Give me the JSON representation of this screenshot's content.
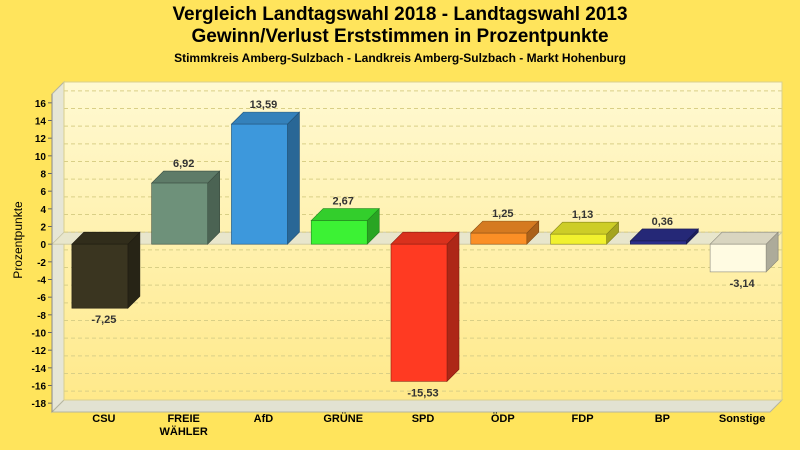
{
  "chart_data": {
    "type": "bar",
    "title": "Vergleich Landtagswahl 2018 - Landtagswahl 2013",
    "subtitle": "Gewinn/Verlust Erststimmen in Prozentpunkte",
    "subtitle2": "Stimmkreis Amberg-Sulzbach - Landkreis Amberg-Sulzbach - Markt Hohenburg",
    "ylabel": "Prozentpunkte",
    "xlabel": "",
    "ylim": [
      -19,
      17
    ],
    "yticks": [
      16,
      14,
      12,
      10,
      8,
      6,
      4,
      2,
      0,
      -2,
      -4,
      -6,
      -8,
      -10,
      -12,
      -14,
      -16,
      -18
    ],
    "grid": true,
    "categories": [
      "CSU",
      "FREIE\nWÄHLER",
      "AfD",
      "GRÜNE",
      "SPD",
      "ÖDP",
      "FDP",
      "BP",
      "Sonstige"
    ],
    "values": [
      -7.25,
      6.92,
      13.59,
      2.67,
      -15.53,
      1.25,
      1.13,
      0.36,
      -3.14
    ],
    "value_labels": [
      "-7,25",
      "6,92",
      "13,59",
      "2,67",
      "-15,53",
      "1,25",
      "1,13",
      "0,36",
      "-3,14"
    ],
    "colors": [
      "#3a3520",
      "#6e917a",
      "#3d98dc",
      "#3cf234",
      "#ff3a22",
      "#fb8f26",
      "#f1f12e",
      "#2c2f8c",
      "#fffbe2"
    ]
  }
}
